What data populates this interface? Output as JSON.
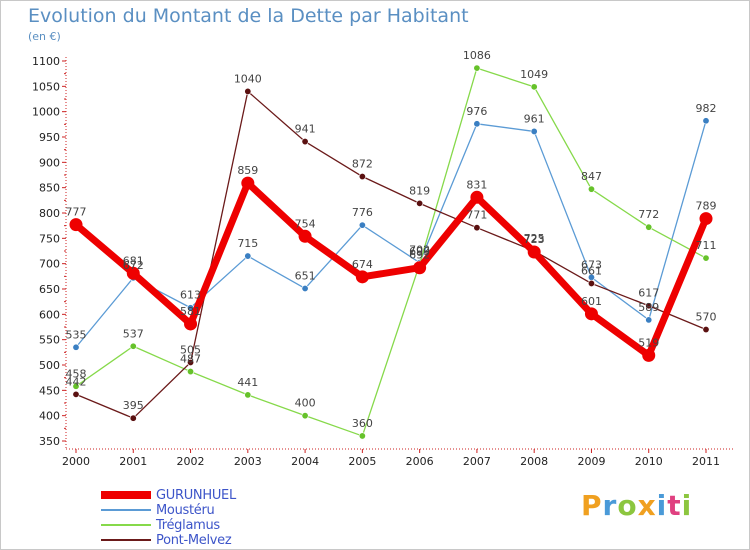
{
  "title": "Evolution du Montant de la Dette par Habitant",
  "unit_label": "(en €)",
  "brand": "Proxiti",
  "chart_data": {
    "type": "line",
    "title": "Evolution du Montant de la Dette par Habitant",
    "ylabel": "(en €)",
    "xlabel": "",
    "ylim": [
      350,
      1100
    ],
    "yticks": [
      350,
      400,
      450,
      500,
      550,
      600,
      650,
      700,
      750,
      800,
      850,
      900,
      950,
      1000,
      1050,
      1100
    ],
    "grid": false,
    "legend_position": "bottom-left",
    "x": [
      "2000",
      "2001",
      "2002",
      "2003",
      "2004",
      "2005",
      "2006",
      "2007",
      "2008",
      "2009",
      "2010",
      "2011"
    ],
    "series": [
      {
        "name": "GURUNHUEL",
        "color": "#ee0000",
        "values": [
          777,
          681,
          581,
          859,
          754,
          674,
          692,
          831,
          723,
          601,
          519,
          789
        ]
      },
      {
        "name": "Moustéru",
        "color": "#5b9bd5",
        "values": [
          535,
          672,
          613,
          715,
          651,
          776,
          702,
          976,
          961,
          673,
          589,
          982
        ]
      },
      {
        "name": "Tréglamus",
        "color": "#86d94a",
        "values": [
          458,
          537,
          487,
          441,
          400,
          360,
          699,
          1086,
          1049,
          847,
          772,
          711
        ]
      },
      {
        "name": "Pont-Melvez",
        "color": "#6b1a1a",
        "values": [
          442,
          395,
          505,
          1040,
          941,
          872,
          819,
          771,
          725,
          661,
          617,
          570
        ]
      }
    ]
  }
}
